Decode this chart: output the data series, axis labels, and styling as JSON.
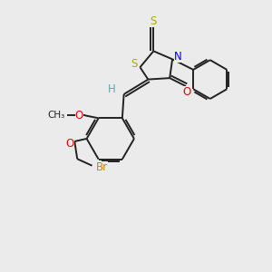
{
  "background_color": "#ebebeb",
  "atom_colors": {
    "H": "#5aabab",
    "N": "#0000ee",
    "O": "#ee0000",
    "S": "#aaaa00",
    "Br": "#cc8800"
  },
  "bond_color": "#222222",
  "bond_lw": 1.4,
  "label_fontsize": 8.5,
  "figsize": [
    3.0,
    3.0
  ],
  "dpi": 100
}
